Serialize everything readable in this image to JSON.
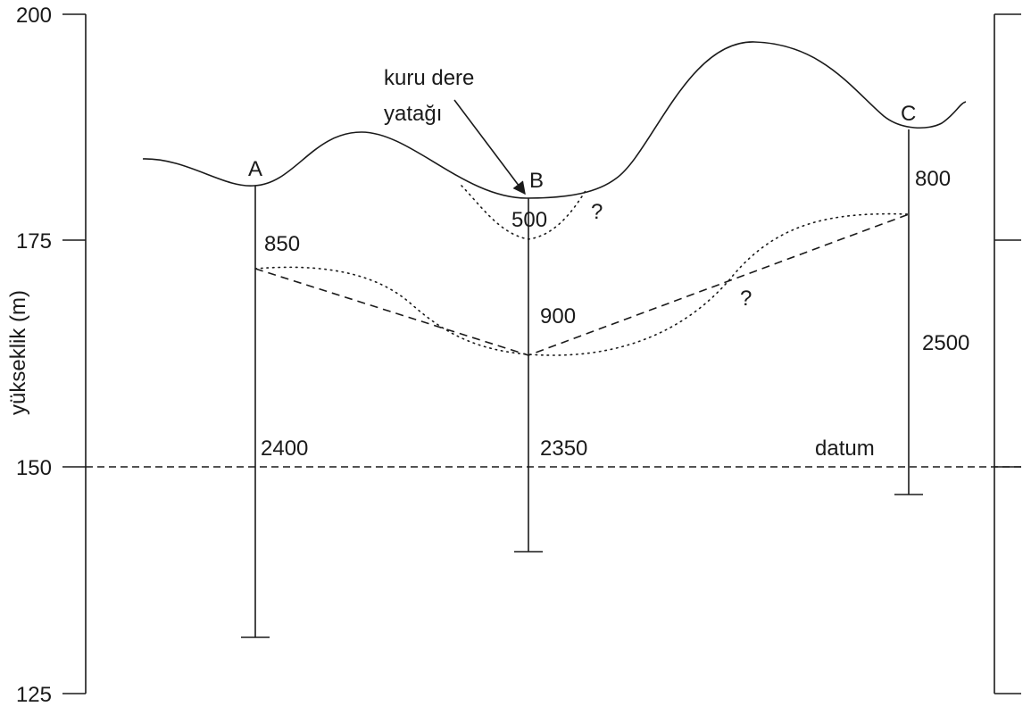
{
  "axis": {
    "title": "yükseklik (m)",
    "ticks": [
      "200",
      "175",
      "150",
      "125"
    ]
  },
  "wells": {
    "A": {
      "label": "A",
      "depths": [
        "850",
        "2400"
      ]
    },
    "B": {
      "label": "B",
      "depths": [
        "500",
        "900",
        "2350"
      ]
    },
    "C": {
      "label": "C",
      "depths": [
        "800",
        "2500"
      ]
    }
  },
  "annotations": {
    "dry_stream_line1": "kuru dere",
    "dry_stream_line2": "yatağı",
    "question_1": "?",
    "question_2": "?",
    "datum": "datum"
  },
  "colors": {
    "ink": "#1a1a1a",
    "background": "#ffffff"
  }
}
